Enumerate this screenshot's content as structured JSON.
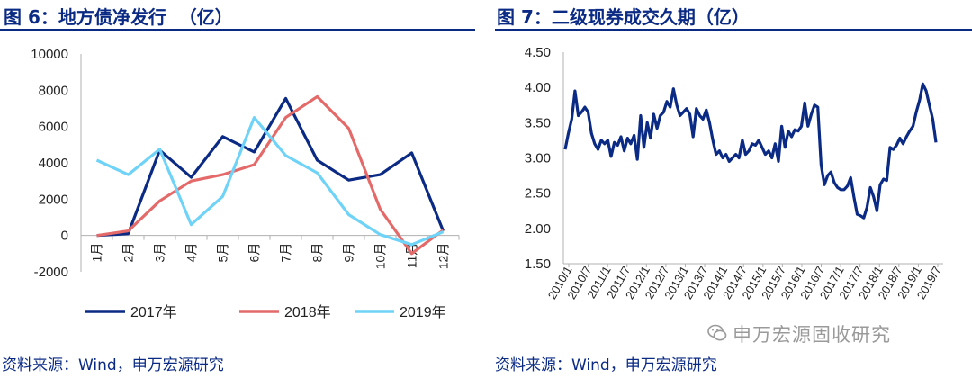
{
  "left": {
    "title": "图 6：地方债净发行  （亿）",
    "source": "资料来源：Wind，申万宏源研究",
    "chart_data": {
      "type": "line",
      "categories": [
        "1月",
        "2月",
        "3月",
        "4月",
        "5月",
        "6月",
        "7月",
        "8月",
        "9月",
        "10月",
        "11月",
        "12月"
      ],
      "ylim": [
        -2000,
        10000
      ],
      "yticks": [
        -2000,
        0,
        2000,
        4000,
        6000,
        8000,
        10000
      ],
      "grid": false,
      "legend_position": "bottom",
      "series": [
        {
          "name": "2017年",
          "color": "#0a2a84",
          "values": [
            0,
            100,
            4700,
            3200,
            5450,
            4600,
            7550,
            4150,
            3050,
            3350,
            4550,
            250
          ]
        },
        {
          "name": "2018年",
          "color": "#e46a6a",
          "values": [
            0,
            250,
            1900,
            3000,
            3350,
            3900,
            6500,
            7650,
            5900,
            1450,
            -1000,
            300
          ]
        },
        {
          "name": "2019年",
          "color": "#6fd3f7",
          "values": [
            4150,
            3350,
            4750,
            600,
            2150,
            6500,
            4400,
            3450,
            1150,
            50,
            -500,
            200
          ]
        }
      ]
    }
  },
  "right": {
    "title": "图 7：二级现券成交久期（亿）",
    "source": "资料来源：Wind，申万宏源研究",
    "watermark": "申万宏源固收研究",
    "chart_data": {
      "type": "line",
      "ylim": [
        1.5,
        4.5
      ],
      "yticks": [
        "4.50",
        "4.00",
        "3.50",
        "3.00",
        "2.50",
        "2.00",
        "1.50"
      ],
      "xticks": [
        "2010/1",
        "2010/7",
        "2011/1",
        "2011/7",
        "2012/1",
        "2012/7",
        "2013/1",
        "2013/7",
        "2014/1",
        "2014/7",
        "2015/1",
        "2015/7",
        "2016/1",
        "2016/7",
        "2017/1",
        "2017/7",
        "2018/1",
        "2018/7",
        "2019/1",
        "2019/7"
      ],
      "grid": false,
      "series": [
        {
          "color": "#0a2a84",
          "values": [
            3.12,
            3.35,
            3.55,
            3.95,
            3.6,
            3.65,
            3.72,
            3.65,
            3.35,
            3.2,
            3.12,
            3.25,
            3.2,
            3.25,
            3.02,
            3.22,
            3.18,
            3.3,
            3.1,
            3.28,
            3.2,
            3.32,
            2.98,
            3.6,
            3.15,
            3.5,
            3.28,
            3.62,
            3.42,
            3.6,
            3.65,
            3.8,
            3.72,
            3.98,
            3.75,
            3.6,
            3.65,
            3.7,
            3.62,
            3.3,
            3.7,
            3.6,
            3.55,
            3.68,
            3.5,
            3.25,
            3.05,
            3.1,
            3.0,
            3.05,
            2.95,
            3.0,
            3.05,
            3.0,
            3.25,
            3.05,
            3.1,
            3.2,
            3.18,
            3.25,
            3.15,
            3.05,
            3.1,
            3.0,
            3.2,
            2.95,
            3.45,
            3.15,
            3.38,
            3.3,
            3.4,
            3.38,
            3.45,
            3.78,
            3.45,
            3.62,
            3.75,
            3.72,
            2.9,
            2.62,
            2.75,
            2.8,
            2.65,
            2.58,
            2.55,
            2.55,
            2.6,
            2.72,
            2.45,
            2.2,
            2.18,
            2.15,
            2.3,
            2.58,
            2.45,
            2.25,
            2.62,
            2.7,
            2.68,
            3.15,
            3.12,
            3.18,
            3.28,
            3.2,
            3.3,
            3.38,
            3.45,
            3.65,
            3.82,
            4.05,
            3.95,
            3.75,
            3.55,
            3.22
          ]
        }
      ]
    }
  }
}
